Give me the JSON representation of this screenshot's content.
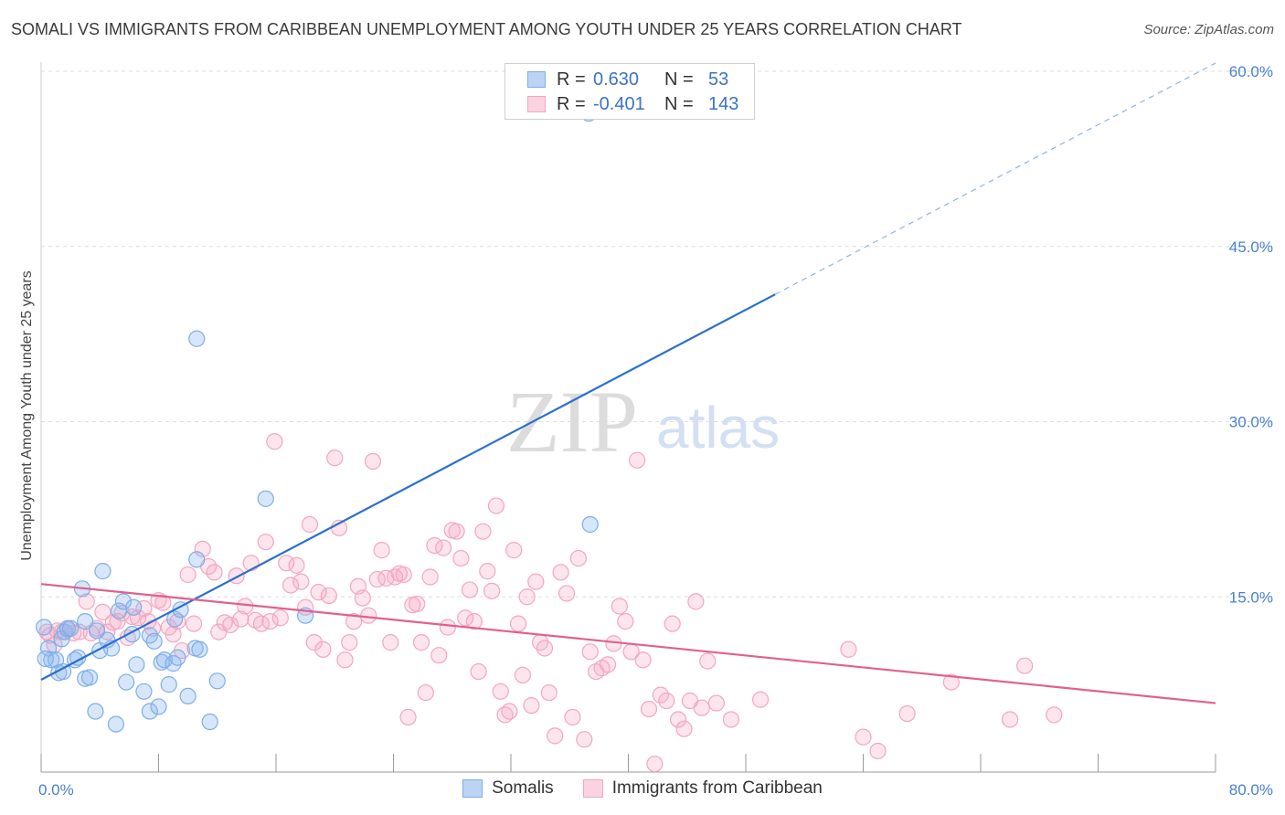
{
  "header": {
    "title": "SOMALI VS IMMIGRANTS FROM CARIBBEAN UNEMPLOYMENT AMONG YOUTH UNDER 25 YEARS CORRELATION CHART",
    "source": "Source: ZipAtlas.com"
  },
  "watermark": {
    "zip": "ZIP",
    "atlas": "atlas"
  },
  "legend": {
    "rows": [
      {
        "r_label": "R = ",
        "r_value": "0.630",
        "n_label": "N = ",
        "n_value": "53"
      },
      {
        "r_label": "R = ",
        "r_value": "-0.401",
        "n_label": "N = ",
        "n_value": "143"
      }
    ]
  },
  "chart_data": {
    "type": "scatter",
    "title": "SOMALI VS IMMIGRANTS FROM CARIBBEAN UNEMPLOYMENT AMONG YOUTH UNDER 25 YEARS CORRELATION CHART",
    "xlabel": "",
    "ylabel": "Unemployment Among Youth under 25 years",
    "xlim": [
      0,
      80
    ],
    "ylim": [
      0,
      60
    ],
    "x_tick_labels": [
      "0.0%",
      "80.0%"
    ],
    "y_ticks": [
      15,
      30,
      45,
      60
    ],
    "y_tick_labels": [
      "15.0%",
      "30.0%",
      "45.0%",
      "60.0%"
    ],
    "grid": true,
    "legend_position": "top-center",
    "series": [
      {
        "name": "Somalis",
        "color": "#7eaee8",
        "trend_color": "#2b6fcf",
        "trend": {
          "x0": 0,
          "y0": 7.9,
          "x1": 50,
          "y1": 40.9,
          "dashed_to_x": 80,
          "dashed_to_y": 60.7
        },
        "points": [
          [
            0.2,
            12.4
          ],
          [
            0.5,
            10.6
          ],
          [
            0.7,
            9.6
          ],
          [
            1.0,
            9.6
          ],
          [
            1.2,
            8.5
          ],
          [
            1.4,
            11.4
          ],
          [
            1.5,
            8.6
          ],
          [
            1.6,
            12.0
          ],
          [
            1.8,
            12.3
          ],
          [
            2.0,
            12.3
          ],
          [
            2.3,
            9.6
          ],
          [
            2.5,
            9.8
          ],
          [
            2.8,
            15.7
          ],
          [
            3.0,
            12.9
          ],
          [
            3.0,
            8.0
          ],
          [
            3.3,
            8.1
          ],
          [
            3.7,
            5.2
          ],
          [
            3.8,
            12.1
          ],
          [
            4.0,
            10.4
          ],
          [
            4.2,
            17.2
          ],
          [
            4.5,
            11.3
          ],
          [
            4.8,
            10.6
          ],
          [
            5.1,
            4.1
          ],
          [
            5.3,
            13.8
          ],
          [
            5.6,
            14.6
          ],
          [
            5.8,
            7.7
          ],
          [
            6.2,
            11.8
          ],
          [
            6.3,
            14.1
          ],
          [
            6.5,
            9.2
          ],
          [
            7.0,
            6.9
          ],
          [
            7.4,
            11.7
          ],
          [
            7.4,
            5.2
          ],
          [
            7.7,
            11.2
          ],
          [
            8.0,
            5.6
          ],
          [
            8.2,
            9.4
          ],
          [
            8.4,
            9.6
          ],
          [
            8.7,
            7.5
          ],
          [
            9.0,
            9.3
          ],
          [
            9.1,
            13.1
          ],
          [
            9.3,
            9.8
          ],
          [
            9.5,
            13.9
          ],
          [
            10.0,
            6.5
          ],
          [
            10.5,
            10.6
          ],
          [
            10.6,
            37.1
          ],
          [
            10.6,
            18.2
          ],
          [
            10.8,
            10.5
          ],
          [
            12.0,
            7.8
          ],
          [
            15.3,
            23.4
          ],
          [
            18.0,
            13.4
          ],
          [
            11.5,
            4.3
          ],
          [
            37.4,
            21.2
          ],
          [
            37.3,
            56.4
          ],
          [
            0.3,
            9.7
          ]
        ]
      },
      {
        "name": "Immigrants from Caribbean",
        "color": "#f3a6bf",
        "trend_color": "#e06090",
        "trend": {
          "x0": 0,
          "y0": 16.1,
          "x1": 80,
          "y1": 5.9
        },
        "points": [
          [
            0.4,
            12.0
          ],
          [
            0.6,
            11.7
          ],
          [
            0.9,
            10.9
          ],
          [
            1.1,
            12.1
          ],
          [
            1.4,
            12.0
          ],
          [
            1.8,
            12.2
          ],
          [
            2.2,
            11.9
          ],
          [
            2.6,
            12.0
          ],
          [
            3.1,
            14.6
          ],
          [
            3.4,
            11.9
          ],
          [
            3.8,
            12.3
          ],
          [
            4.2,
            13.7
          ],
          [
            4.5,
            12.0
          ],
          [
            4.9,
            12.8
          ],
          [
            5.2,
            12.9
          ],
          [
            5.5,
            13.6
          ],
          [
            5.9,
            11.5
          ],
          [
            6.2,
            13.3
          ],
          [
            6.6,
            13.2
          ],
          [
            7.0,
            14.0
          ],
          [
            7.3,
            12.9
          ],
          [
            7.6,
            12.3
          ],
          [
            8.0,
            14.7
          ],
          [
            8.3,
            14.5
          ],
          [
            8.7,
            12.4
          ],
          [
            9.0,
            11.8
          ],
          [
            9.3,
            12.9
          ],
          [
            9.6,
            10.4
          ],
          [
            10.0,
            16.9
          ],
          [
            10.4,
            12.7
          ],
          [
            11.0,
            19.1
          ],
          [
            11.4,
            17.6
          ],
          [
            11.8,
            17.1
          ],
          [
            12.1,
            12.0
          ],
          [
            12.5,
            12.8
          ],
          [
            12.9,
            12.6
          ],
          [
            13.3,
            16.8
          ],
          [
            13.6,
            13.1
          ],
          [
            13.9,
            14.2
          ],
          [
            14.3,
            17.9
          ],
          [
            14.6,
            13.0
          ],
          [
            15.0,
            12.7
          ],
          [
            15.3,
            19.7
          ],
          [
            15.6,
            12.9
          ],
          [
            15.9,
            28.3
          ],
          [
            16.3,
            13.2
          ],
          [
            16.7,
            17.9
          ],
          [
            17.0,
            16.0
          ],
          [
            17.4,
            17.7
          ],
          [
            17.7,
            16.3
          ],
          [
            18.0,
            14.1
          ],
          [
            18.3,
            21.2
          ],
          [
            18.6,
            11.1
          ],
          [
            18.9,
            15.4
          ],
          [
            19.2,
            10.5
          ],
          [
            19.6,
            15.1
          ],
          [
            20.0,
            26.9
          ],
          [
            20.3,
            20.9
          ],
          [
            20.7,
            9.6
          ],
          [
            21.0,
            11.1
          ],
          [
            21.3,
            12.9
          ],
          [
            21.6,
            15.9
          ],
          [
            21.9,
            14.9
          ],
          [
            22.3,
            13.4
          ],
          [
            22.6,
            26.6
          ],
          [
            22.9,
            16.5
          ],
          [
            23.2,
            19.0
          ],
          [
            23.5,
            16.6
          ],
          [
            23.8,
            11.1
          ],
          [
            24.1,
            16.7
          ],
          [
            24.4,
            17.0
          ],
          [
            24.7,
            16.9
          ],
          [
            25.0,
            4.7
          ],
          [
            25.3,
            14.3
          ],
          [
            25.6,
            14.4
          ],
          [
            25.9,
            11.1
          ],
          [
            26.2,
            6.8
          ],
          [
            26.5,
            16.7
          ],
          [
            26.8,
            19.4
          ],
          [
            27.1,
            10.0
          ],
          [
            27.4,
            19.2
          ],
          [
            27.7,
            12.4
          ],
          [
            28.0,
            20.7
          ],
          [
            28.3,
            20.6
          ],
          [
            28.6,
            18.3
          ],
          [
            28.9,
            13.2
          ],
          [
            29.2,
            15.6
          ],
          [
            29.5,
            12.9
          ],
          [
            29.8,
            8.6
          ],
          [
            30.1,
            20.6
          ],
          [
            30.4,
            17.2
          ],
          [
            30.7,
            15.5
          ],
          [
            31.0,
            22.8
          ],
          [
            31.3,
            6.9
          ],
          [
            31.6,
            4.9
          ],
          [
            31.9,
            5.2
          ],
          [
            32.2,
            19.0
          ],
          [
            32.5,
            12.7
          ],
          [
            32.8,
            8.3
          ],
          [
            33.1,
            15.0
          ],
          [
            33.4,
            5.7
          ],
          [
            33.7,
            16.3
          ],
          [
            34.0,
            11.1
          ],
          [
            34.3,
            10.6
          ],
          [
            34.6,
            6.8
          ],
          [
            35.0,
            3.1
          ],
          [
            35.4,
            17.1
          ],
          [
            35.8,
            15.3
          ],
          [
            36.2,
            4.7
          ],
          [
            36.6,
            18.3
          ],
          [
            37.0,
            2.8
          ],
          [
            37.4,
            10.3
          ],
          [
            37.8,
            8.6
          ],
          [
            38.2,
            8.9
          ],
          [
            38.6,
            9.2
          ],
          [
            39.0,
            11.0
          ],
          [
            39.4,
            14.2
          ],
          [
            39.8,
            12.9
          ],
          [
            40.2,
            10.3
          ],
          [
            40.6,
            26.7
          ],
          [
            41.0,
            9.6
          ],
          [
            41.4,
            5.4
          ],
          [
            41.8,
            0.7
          ],
          [
            42.2,
            6.6
          ],
          [
            42.6,
            6.1
          ],
          [
            43.0,
            12.7
          ],
          [
            43.4,
            4.5
          ],
          [
            43.8,
            3.7
          ],
          [
            44.2,
            6.1
          ],
          [
            44.6,
            14.6
          ],
          [
            45.0,
            5.5
          ],
          [
            45.4,
            9.5
          ],
          [
            46.0,
            5.9
          ],
          [
            47.0,
            4.5
          ],
          [
            49.0,
            6.2
          ],
          [
            55.0,
            10.5
          ],
          [
            56.0,
            3.0
          ],
          [
            57.0,
            1.8
          ],
          [
            59.0,
            5.0
          ],
          [
            62.0,
            7.7
          ],
          [
            66.0,
            4.5
          ],
          [
            67.0,
            9.1
          ],
          [
            69.0,
            4.9
          ]
        ]
      }
    ]
  },
  "bottom_legend": [
    {
      "label": "Somalis",
      "fill": "#bcd3f3",
      "stroke": "#7eaee8"
    },
    {
      "label": "Immigrants from Caribbean",
      "fill": "#fbd3e0",
      "stroke": "#f3a6bf"
    }
  ]
}
